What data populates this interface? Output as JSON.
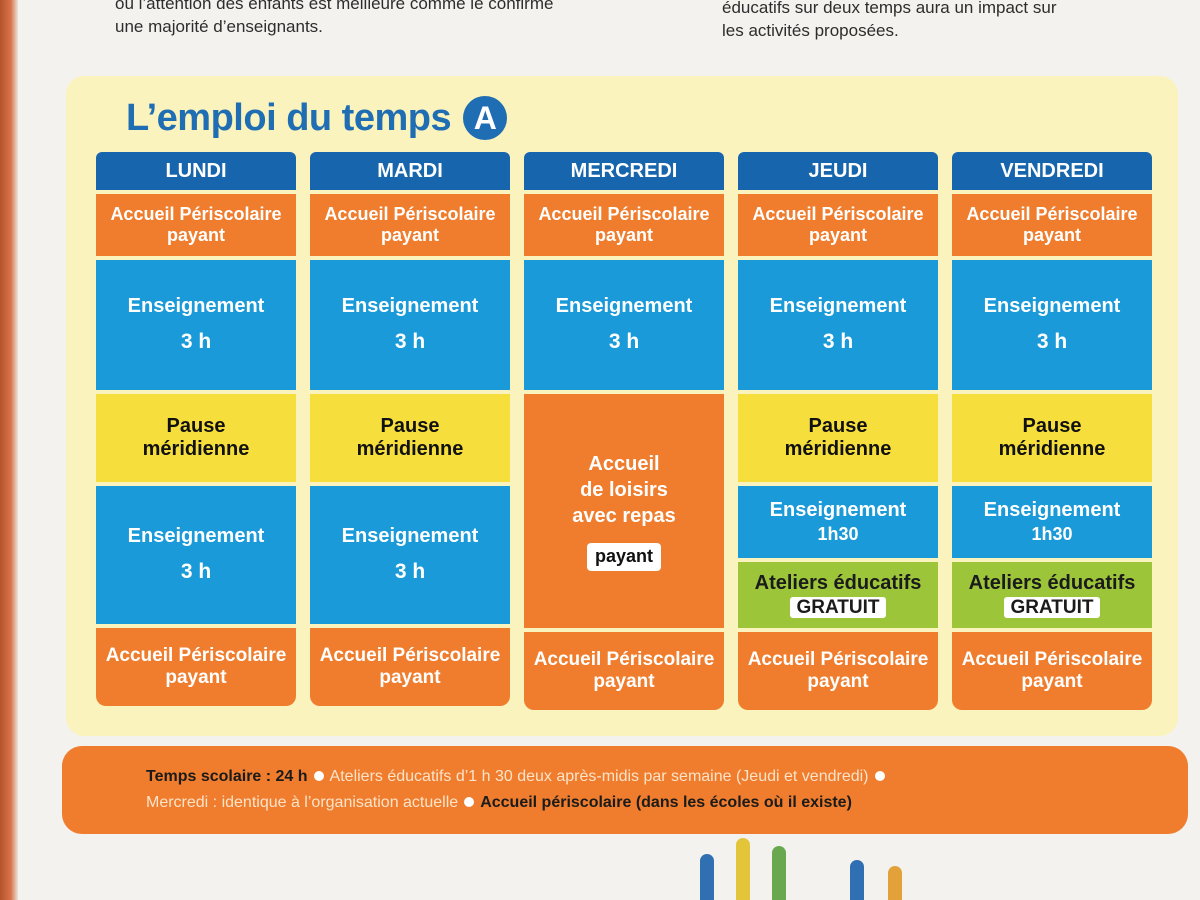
{
  "intro": {
    "left_line1": "où l’attention des enfants est meilleure comme le confirme",
    "left_line2": "une majorité d’enseignants.",
    "right_line1": "éducatifs sur deux temps aura un impact sur",
    "right_line2": "les activités proposées."
  },
  "title": {
    "text": "L’emploi du temps",
    "badge": "A"
  },
  "days": {
    "lundi": "LUNDI",
    "mardi": "MARDI",
    "mercredi": "MERCREDI",
    "jeudi": "JEUDI",
    "vendredi": "VENDREDI"
  },
  "labels": {
    "accueil_line1": "Accueil Périscolaire",
    "accueil_line2": "payant",
    "enseignement": "Enseignement",
    "hours_3h": "3 h",
    "hours_1h30": "1h30",
    "pause_line1": "Pause",
    "pause_line2": "méridienne",
    "loisirs_line1": "Accueil",
    "loisirs_line2": "de loisirs",
    "loisirs_line3": "avec repas",
    "loisirs_tag": "payant",
    "ateliers": "Ateliers éducatifs",
    "gratuit": "GRATUIT"
  },
  "footer": {
    "line1_strong": "Temps scolaire : 24 h",
    "line1_rest": "Ateliers éducatifs d’1 h 30 deux après-midis par semaine (Jeudi et vendredi)",
    "line2_text": "Mercredi : identique à l’organisation actuelle",
    "line2_strong": "Accueil périscolaire (dans les écoles où il existe)"
  },
  "colors": {
    "day_header": "#1766ad",
    "periscolaire": "#ef7d2d",
    "enseignement": "#1a9ad8",
    "pause": "#f6df3d",
    "ateliers": "#9dc53a",
    "panel_bg": "#fbf3bd"
  }
}
